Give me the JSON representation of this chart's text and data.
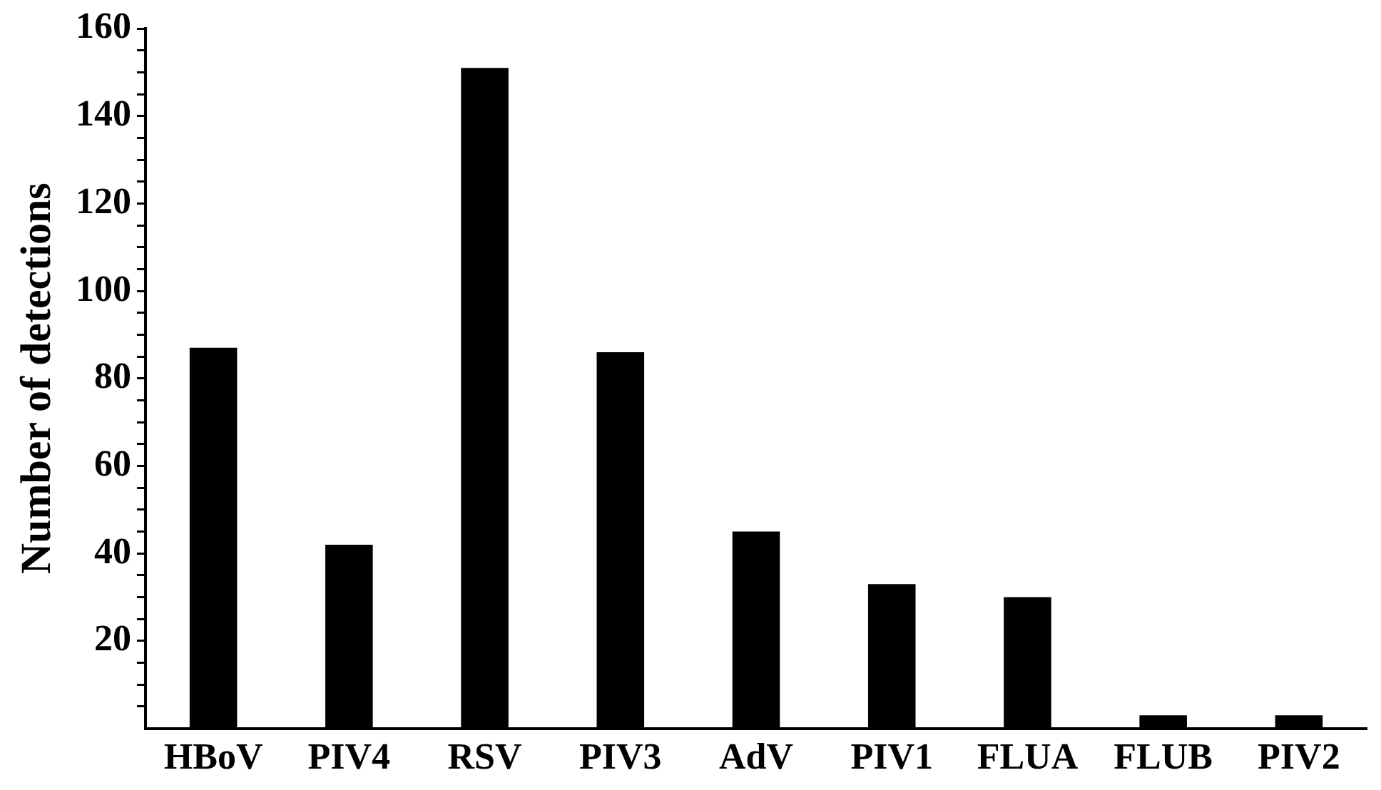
{
  "chart_data": {
    "type": "bar",
    "ylabel": "Number of detections",
    "categories": [
      "HBoV",
      "PIV4",
      "RSV",
      "PIV3",
      "AdV",
      "PIV1",
      "FLUA",
      "FLUB",
      "PIV2"
    ],
    "values": [
      87,
      42,
      151,
      86,
      45,
      33,
      30,
      3,
      3
    ],
    "color": "#000000",
    "ylim": [
      0,
      160
    ],
    "yticks": [
      {
        "value": 5,
        "label": null
      },
      {
        "value": 10,
        "label": null
      },
      {
        "value": 15,
        "label": null
      },
      20,
      {
        "value": 25,
        "label": null
      },
      {
        "value": 30,
        "label": null
      },
      {
        "value": 35,
        "label": null
      },
      40,
      {
        "value": 45,
        "label": null
      },
      {
        "value": 50,
        "label": null
      },
      {
        "value": 55,
        "label": null
      },
      60,
      {
        "value": 65,
        "label": null
      },
      {
        "value": 70,
        "label": null
      },
      {
        "value": 75,
        "label": null
      },
      80,
      {
        "value": 85,
        "label": null
      },
      {
        "value": 90,
        "label": null
      },
      {
        "value": 95,
        "label": null
      },
      100,
      {
        "value": 105,
        "label": null
      },
      {
        "value": 110,
        "label": null
      },
      {
        "value": 115,
        "label": null
      },
      120,
      {
        "value": 125,
        "label": null
      },
      {
        "value": 130,
        "label": null
      },
      {
        "value": 135,
        "label": null
      },
      140,
      {
        "value": 145,
        "label": null
      },
      {
        "value": 150,
        "label": null
      },
      {
        "value": 155,
        "label": null
      },
      160
    ],
    "grid": false,
    "legend": false
  }
}
